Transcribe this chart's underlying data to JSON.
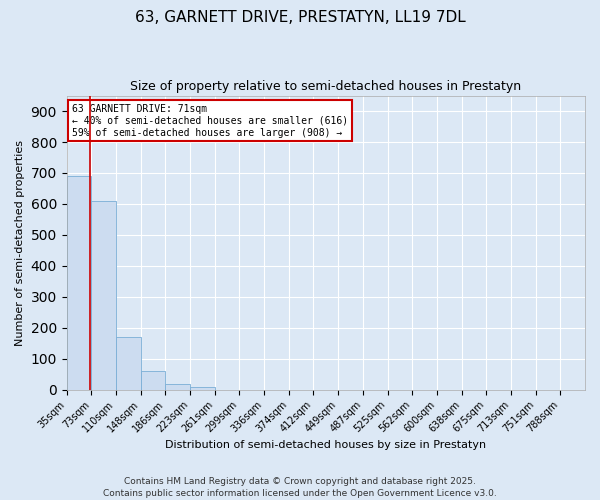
{
  "title": "63, GARNETT DRIVE, PRESTATYN, LL19 7DL",
  "subtitle": "Size of property relative to semi-detached houses in Prestatyn",
  "xlabel": "Distribution of semi-detached houses by size in Prestatyn",
  "ylabel": "Number of semi-detached properties",
  "bar_color": "#ccdcf0",
  "bar_edge_color": "#7aaed6",
  "bg_color": "#dce8f5",
  "grid_color": "#ffffff",
  "bins": [
    "35sqm",
    "73sqm",
    "110sqm",
    "148sqm",
    "186sqm",
    "223sqm",
    "261sqm",
    "299sqm",
    "336sqm",
    "374sqm",
    "412sqm",
    "449sqm",
    "487sqm",
    "525sqm",
    "562sqm",
    "600sqm",
    "638sqm",
    "675sqm",
    "713sqm",
    "751sqm",
    "788sqm"
  ],
  "values": [
    690,
    610,
    170,
    60,
    18,
    10,
    0,
    0,
    0,
    0,
    0,
    0,
    0,
    0,
    0,
    0,
    0,
    0,
    0,
    0,
    0
  ],
  "property_size": 71,
  "property_line_color": "#cc0000",
  "annotation_title": "63 GARNETT DRIVE: 71sqm",
  "annotation_line1": "← 40% of semi-detached houses are smaller (616)",
  "annotation_line2": "59% of semi-detached houses are larger (908) →",
  "annotation_box_color": "#cc0000",
  "annotation_fill": "#ffffff",
  "ylim": [
    0,
    950
  ],
  "yticks": [
    0,
    100,
    200,
    300,
    400,
    500,
    600,
    700,
    800,
    900
  ],
  "title_fontsize": 11,
  "subtitle_fontsize": 9,
  "ylabel_fontsize": 8,
  "xlabel_fontsize": 8,
  "tick_fontsize": 7,
  "footer": "Contains HM Land Registry data © Crown copyright and database right 2025.\nContains public sector information licensed under the Open Government Licence v3.0.",
  "footer_fontsize": 6.5
}
